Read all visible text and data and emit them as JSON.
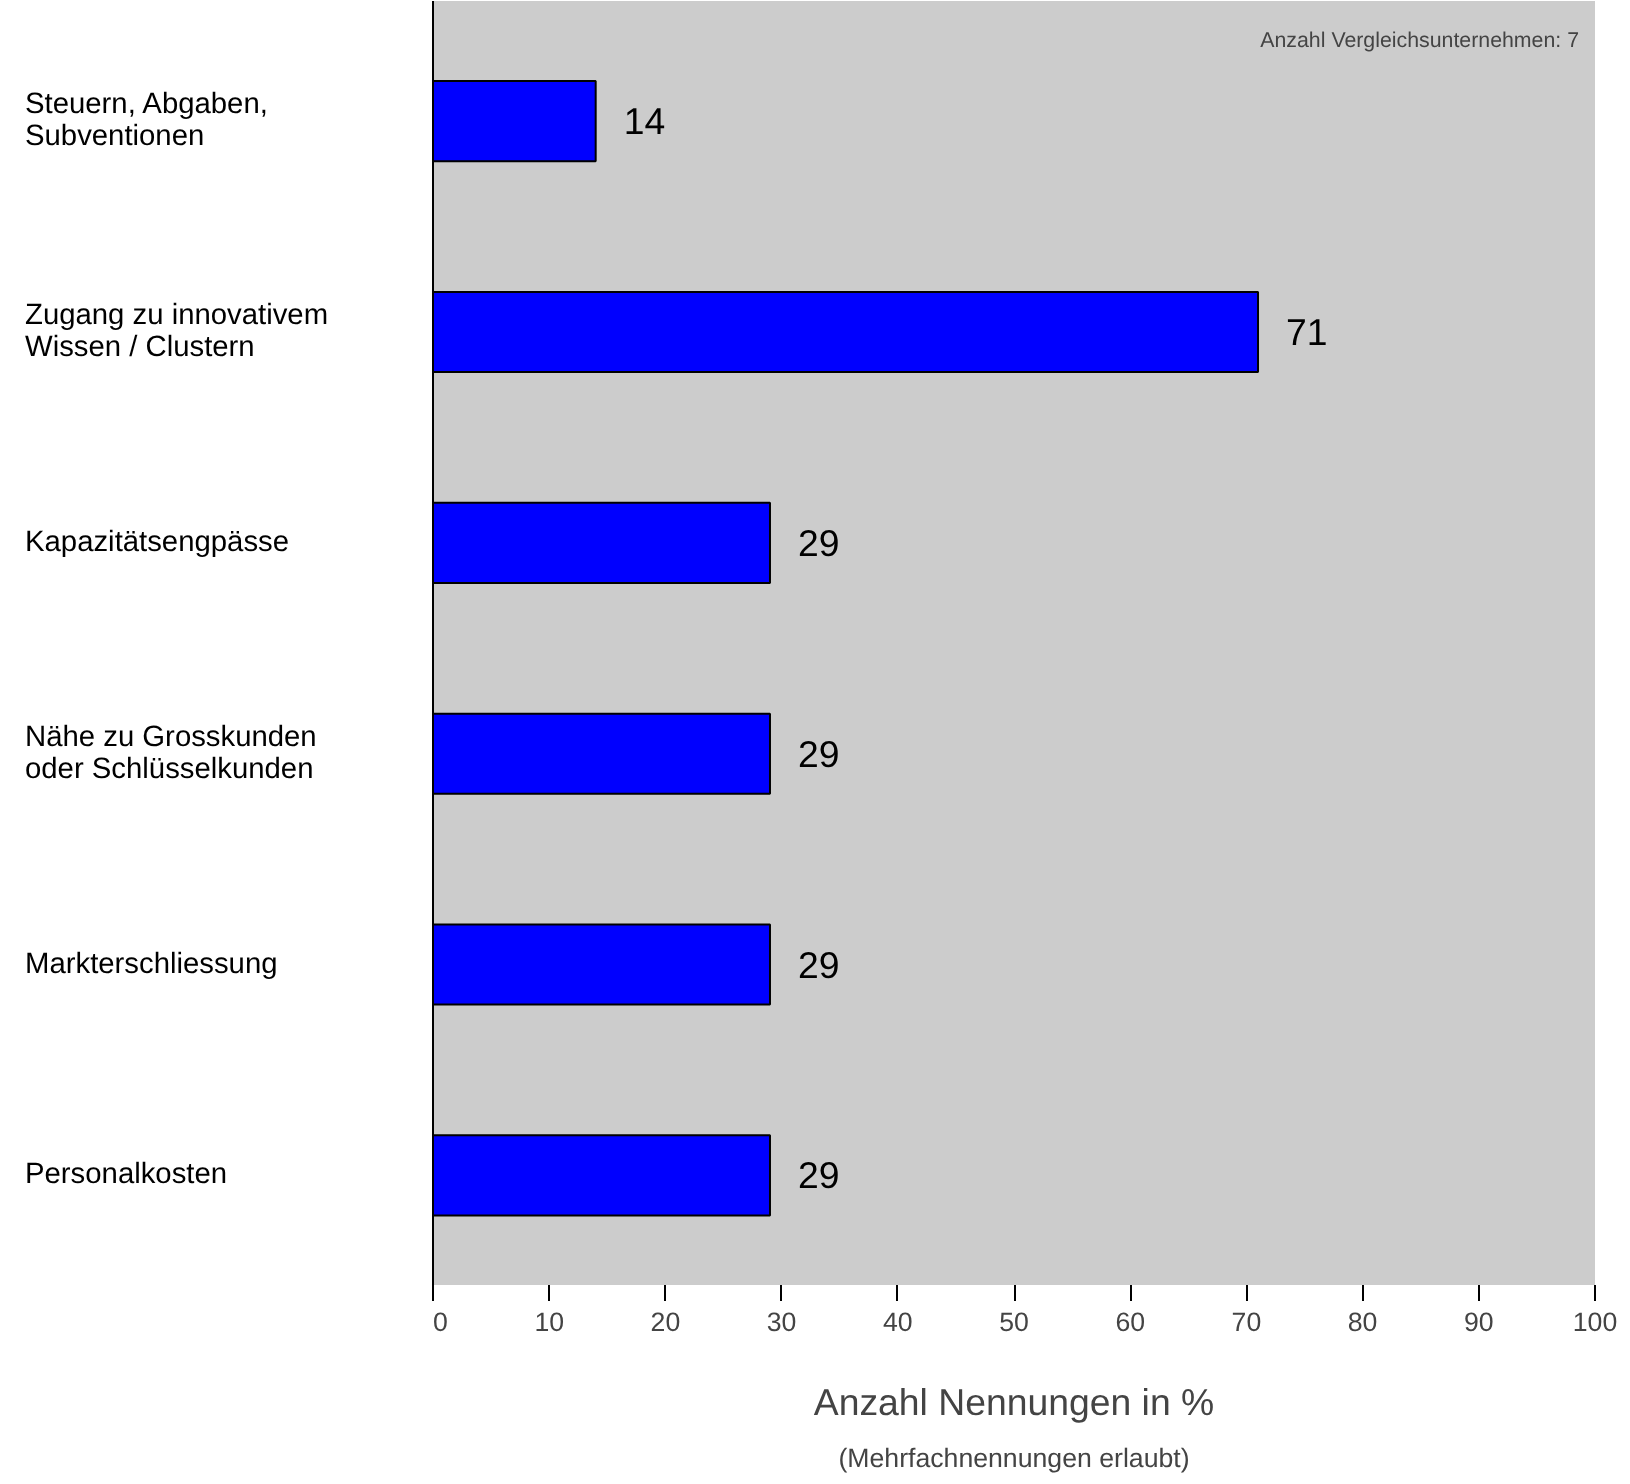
{
  "chart_data": {
    "type": "bar",
    "orientation": "horizontal",
    "categories": [
      "Steuern, Abgaben,\nSubventionen",
      "Zugang zu innovativem\nWissen / Clustern",
      "Kapazitätsengpässe",
      "Nähe zu Grosskunden\noder Schlüsselkunden",
      "Markterschliessung",
      "Personalkosten"
    ],
    "values": [
      14,
      71,
      29,
      29,
      29,
      29
    ],
    "color": "#0000ff",
    "data_labels": true,
    "grid": false,
    "xlim": [
      0,
      100
    ],
    "xticks": [
      0,
      10,
      20,
      30,
      40,
      50,
      60,
      70,
      80,
      90,
      100
    ],
    "xlabel": "Anzahl Nennungen in %",
    "annotations": [
      "(Mehrfachnennungen erlaubt)",
      "Anzahl Vergleichsunternehmen: 7"
    ]
  }
}
